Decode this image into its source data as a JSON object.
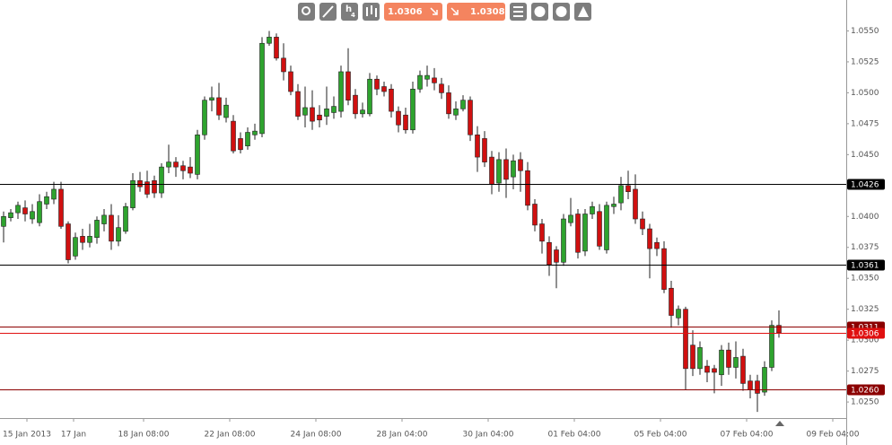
{
  "chart_data": {
    "type": "candlestick",
    "open": [
      1.0392,
      1.0399,
      1.0403,
      1.0407,
      1.0398,
      1.0395,
      1.041,
      1.0414,
      1.0422,
      1.0394,
      1.0368,
      1.0384,
      1.0379,
      1.0383,
      1.0394,
      1.0401,
      1.038,
      1.0388,
      1.0407,
      1.0429,
      1.0428,
      1.0429,
      1.0419,
      1.044,
      1.0444,
      1.0441,
      1.044,
      1.0434,
      1.0466,
      1.0494,
      1.0496,
      1.048,
      1.0477,
      1.0463,
      1.0457,
      1.0466,
      1.0467,
      1.054,
      1.0545,
      1.0528,
      1.0517,
      1.0501,
      1.0482,
      1.0488,
      1.0482,
      1.0481,
      1.0484,
      1.0485,
      1.0517,
      1.0498,
      1.0483,
      1.0483,
      1.0511,
      1.0505,
      1.0503,
      1.0485,
      1.0482,
      1.047,
      1.0503,
      1.0511,
      1.0512,
      1.0507,
      1.05,
      1.0482,
      1.0487,
      1.0494,
      1.0466,
      1.0463,
      1.0448,
      1.0427,
      1.0446,
      1.0432,
      1.0446,
      1.0437,
      1.041,
      1.0394,
      1.0379,
      1.0373,
      1.0363,
      1.0395,
      1.0402,
      1.0372,
      1.0402,
      1.0404,
      1.0373,
      1.0408,
      1.0411,
      1.0425,
      1.0422,
      1.0398,
      1.039,
      1.0379,
      1.0374,
      1.0342,
      1.0318,
      1.0325,
      1.0296,
      1.0277,
      1.0279,
      1.0277,
      1.0272,
      1.0292,
      1.0278,
      1.0287,
      1.0267,
      1.0267,
      1.0258,
      1.0278,
      1.0312
    ],
    "high": [
      1.0404,
      1.0406,
      1.0412,
      1.0413,
      1.041,
      1.0418,
      1.042,
      1.0428,
      1.0428,
      1.0396,
      1.0387,
      1.039,
      1.0394,
      1.04,
      1.0406,
      1.041,
      1.0401,
      1.0411,
      1.0435,
      1.0436,
      1.0437,
      1.0433,
      1.0443,
      1.0458,
      1.0448,
      1.0445,
      1.0448,
      1.047,
      1.0497,
      1.0505,
      1.0508,
      1.0496,
      1.0482,
      1.0468,
      1.0472,
      1.0475,
      1.0545,
      1.055,
      1.0548,
      1.054,
      1.0522,
      1.0507,
      1.0505,
      1.0502,
      1.049,
      1.0505,
      1.0497,
      1.0522,
      1.0536,
      1.0503,
      1.0492,
      1.0516,
      1.0514,
      1.0509,
      1.0507,
      1.0489,
      1.0488,
      1.0509,
      1.0518,
      1.0522,
      1.052,
      1.0512,
      1.0506,
      1.0493,
      1.0498,
      1.0497,
      1.0473,
      1.0469,
      1.0453,
      1.0452,
      1.0455,
      1.045,
      1.0452,
      1.0444,
      1.0414,
      1.0398,
      1.0384,
      1.0376,
      1.0402,
      1.0415,
      1.0406,
      1.0406,
      1.0412,
      1.041,
      1.0412,
      1.0416,
      1.0432,
      1.0437,
      1.0434,
      1.0404,
      1.0394,
      1.0383,
      1.038,
      1.0348,
      1.0328,
      1.0327,
      1.0308,
      1.0299,
      1.0284,
      1.028,
      1.0296,
      1.0298,
      1.0299,
      1.0293,
      1.0272,
      1.0272,
      1.0283,
      1.0316,
      1.0324
    ],
    "low": [
      1.0379,
      1.0396,
      1.0398,
      1.0396,
      1.0394,
      1.0392,
      1.0406,
      1.041,
      1.039,
      1.0362,
      1.0365,
      1.0373,
      1.0375,
      1.0378,
      1.0388,
      1.0373,
      1.0376,
      1.0386,
      1.0405,
      1.042,
      1.0415,
      1.0415,
      1.0415,
      1.0435,
      1.0432,
      1.043,
      1.0431,
      1.043,
      1.0462,
      1.0485,
      1.0478,
      1.0476,
      1.0451,
      1.0451,
      1.0454,
      1.0462,
      1.0464,
      1.0538,
      1.0526,
      1.051,
      1.0498,
      1.0478,
      1.0472,
      1.047,
      1.0472,
      1.0474,
      1.0479,
      1.048,
      1.049,
      1.0479,
      1.048,
      1.0481,
      1.0498,
      1.0497,
      1.048,
      1.0468,
      1.0467,
      1.0467,
      1.05,
      1.0505,
      1.0502,
      1.0495,
      1.0479,
      1.0478,
      1.0485,
      1.0461,
      1.0436,
      1.044,
      1.0418,
      1.042,
      1.0415,
      1.0422,
      1.042,
      1.0405,
      1.0388,
      1.037,
      1.0352,
      1.0342,
      1.036,
      1.0392,
      1.0366,
      1.0368,
      1.0398,
      1.0373,
      1.037,
      1.0402,
      1.0405,
      1.0414,
      1.0394,
      1.0385,
      1.035,
      1.0368,
      1.0338,
      1.031,
      1.0312,
      1.026,
      1.0271,
      1.0272,
      1.0266,
      1.0257,
      1.0263,
      1.0272,
      1.0269,
      1.0259,
      1.0253,
      1.0242,
      1.0255,
      1.0275,
      1.0302
    ],
    "close": [
      1.04,
      1.0403,
      1.0409,
      1.0402,
      1.0404,
      1.0412,
      1.0416,
      1.0422,
      1.0392,
      1.0365,
      1.0383,
      1.0379,
      1.0384,
      1.0397,
      1.0401,
      1.038,
      1.0391,
      1.0408,
      1.0429,
      1.0424,
      1.0418,
      1.0419,
      1.044,
      1.0444,
      1.044,
      1.0437,
      1.0435,
      1.0466,
      1.0494,
      1.0496,
      1.0482,
      1.049,
      1.0453,
      1.0454,
      1.0468,
      1.0469,
      1.054,
      1.0545,
      1.0528,
      1.0517,
      1.0501,
      1.0481,
      1.0488,
      1.0477,
      1.0478,
      1.0487,
      1.0489,
      1.0517,
      1.0494,
      1.0483,
      1.0486,
      1.0511,
      1.0503,
      1.0501,
      1.0485,
      1.0474,
      1.047,
      1.0503,
      1.0514,
      1.0514,
      1.0508,
      1.05,
      1.0483,
      1.0487,
      1.0494,
      1.0466,
      1.0448,
      1.0444,
      1.0426,
      1.0446,
      1.043,
      1.0445,
      1.0437,
      1.0409,
      1.0393,
      1.038,
      1.0361,
      1.0363,
      1.0398,
      1.0401,
      1.0371,
      1.0402,
      1.0408,
      1.0376,
      1.0409,
      1.041,
      1.0425,
      1.042,
      1.0398,
      1.039,
      1.0374,
      1.0374,
      1.0341,
      1.032,
      1.0325,
      1.0277,
      1.0277,
      1.0294,
      1.0274,
      1.0274,
      1.0292,
      1.0278,
      1.0286,
      1.0265,
      1.026,
      1.0257,
      1.0278,
      1.0312,
      1.0306
    ],
    "up_color": "#2ea32e",
    "down_color": "#d01010",
    "ylim": [
      1.0237,
      1.0575
    ],
    "yticks": [
      {
        "value": 1.025,
        "label": "1.0250"
      },
      1.0275,
      {
        "value": 1.03,
        "label": "1.0300"
      },
      1.0325,
      {
        "value": 1.035,
        "label": "1.0350"
      },
      1.0375,
      {
        "value": 1.04,
        "label": "1.0400"
      },
      1.0425,
      {
        "value": 1.045,
        "label": "1.0450"
      },
      1.0475,
      {
        "value": 1.05,
        "label": "1.0500"
      },
      1.0525,
      {
        "value": 1.055,
        "label": "1.0550"
      }
    ],
    "xticks": [
      {
        "value": 3.25,
        "label": "15 Jan 2013"
      },
      {
        "value": 9.75,
        "label": "17 Jan"
      },
      {
        "value": 19.5,
        "label": "18 Jan 08:00"
      },
      {
        "value": 31.5,
        "label": "22 Jan 08:00"
      },
      {
        "value": 43.5,
        "label": "24 Jan 08:00"
      },
      {
        "value": 55.5,
        "label": "28 Jan 04:00"
      },
      {
        "value": 67.5,
        "label": "30 Jan 04:00"
      },
      {
        "value": 79.5,
        "label": "01 Feb 04:00"
      },
      {
        "value": 91.5,
        "label": "05 Feb 04:00"
      },
      {
        "value": 103.5,
        "label": "07 Feb 04:00"
      },
      {
        "value": 115.5,
        "label": "09 Feb 04:00"
      }
    ],
    "levels": [
      {
        "value": 1.0426,
        "label": "1.0426",
        "color": "#000000"
      },
      {
        "value": 1.0361,
        "label": "1.0361",
        "color": "#000000"
      },
      {
        "value": 1.0311,
        "label": "1.0311",
        "color": "#8b0000"
      },
      {
        "value": 1.0306,
        "label": "1.0306",
        "color": "#e01010"
      },
      {
        "value": 1.026,
        "label": "1.0260",
        "color": "#8b0000"
      }
    ],
    "toolbar": {
      "timeframe": [
        "h",
        "4"
      ],
      "sell": 1.0306,
      "buy": 1.0308
    }
  }
}
